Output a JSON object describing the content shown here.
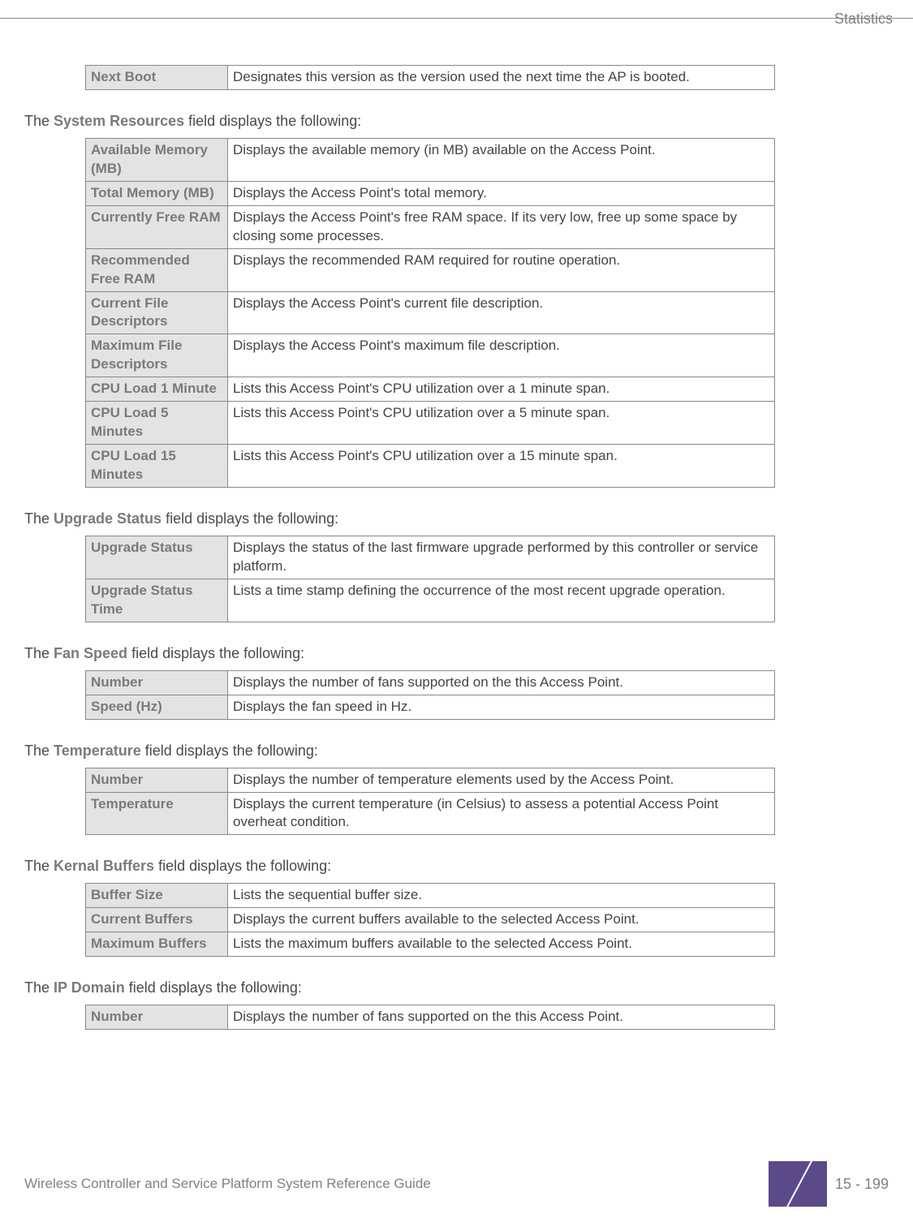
{
  "header": {
    "corner": "Statistics"
  },
  "sections": {
    "nextboot": {
      "rows": [
        {
          "label": "Next Boot",
          "desc": "Designates this version as the version used the next time the AP is booted."
        }
      ]
    },
    "sysres": {
      "intro_pre": "The ",
      "intro_bold": "System Resources",
      "intro_post": " field displays the following:",
      "rows": [
        {
          "label": "Available Memory (MB)",
          "desc": "Displays the available memory (in MB) available on the Access Point."
        },
        {
          "label": "Total Memory (MB)",
          "desc": "Displays the Access Point's total memory."
        },
        {
          "label": "Currently Free RAM",
          "desc": "Displays the Access Point's free RAM space. If its very low, free up some space by closing some processes."
        },
        {
          "label": "Recommended Free RAM",
          "desc": "Displays the recommended RAM required for routine operation."
        },
        {
          "label": "Current File Descriptors",
          "desc": "Displays the Access Point's current file description."
        },
        {
          "label": "Maximum File Descriptors",
          "desc": "Displays the Access Point's maximum file description."
        },
        {
          "label": "CPU Load 1 Minute",
          "desc": "Lists this Access Point's CPU utilization over a 1 minute span."
        },
        {
          "label": "CPU Load 5 Minutes",
          "desc": "Lists this Access Point's CPU utilization over a 5 minute span."
        },
        {
          "label": "CPU Load 15 Minutes",
          "desc": "Lists this Access Point's CPU utilization over a 15 minute span."
        }
      ]
    },
    "upgrade": {
      "intro_pre": "The ",
      "intro_bold": "Upgrade Status",
      "intro_post": " field displays the following:",
      "rows": [
        {
          "label": "Upgrade Status",
          "desc": "Displays the status of the last firmware upgrade performed by this controller or service platform."
        },
        {
          "label": "Upgrade Status Time",
          "desc": "Lists a time stamp defining the occurrence of the most recent upgrade operation."
        }
      ]
    },
    "fan": {
      "intro_pre": "The ",
      "intro_bold": "Fan Speed",
      "intro_post": " field displays the following:",
      "rows": [
        {
          "label": "Number",
          "desc": "Displays the number of fans supported on the this Access Point."
        },
        {
          "label": "Speed (Hz)",
          "desc": "Displays the fan speed in Hz."
        }
      ]
    },
    "temp": {
      "intro_pre": "The ",
      "intro_bold": "Temperature",
      "intro_post": " field displays the following:",
      "rows": [
        {
          "label": "Number",
          "desc": "Displays the number of temperature elements used by the Access Point."
        },
        {
          "label": "Temperature",
          "desc": "Displays the current temperature (in Celsius) to assess a potential Access Point overheat condition."
        }
      ]
    },
    "kernal": {
      "intro_pre": "The ",
      "intro_bold": "Kernal Buffers",
      "intro_post": " field displays the following:",
      "rows": [
        {
          "label": "Buffer Size",
          "desc": "Lists the sequential buffer size."
        },
        {
          "label": "Current Buffers",
          "desc": "Displays the current buffers available to the selected Access Point."
        },
        {
          "label": "Maximum Buffers",
          "desc": "Lists the maximum buffers available to the selected Access Point."
        }
      ]
    },
    "ipdomain": {
      "intro_pre": "The ",
      "intro_bold": "IP Domain",
      "intro_post": " field displays the following:",
      "rows": [
        {
          "label": "Number",
          "desc": "Displays the number of fans supported on the this Access Point."
        }
      ]
    }
  },
  "footer": {
    "left": "Wireless Controller and Service Platform System Reference Guide",
    "page": "15 - 199"
  },
  "colors": {
    "table_header_bg": "#e3e3e3",
    "table_border": "#888888",
    "label_text": "#7a7a7a",
    "body_text": "#4a4a4a",
    "accent": "#5b4a8a"
  }
}
